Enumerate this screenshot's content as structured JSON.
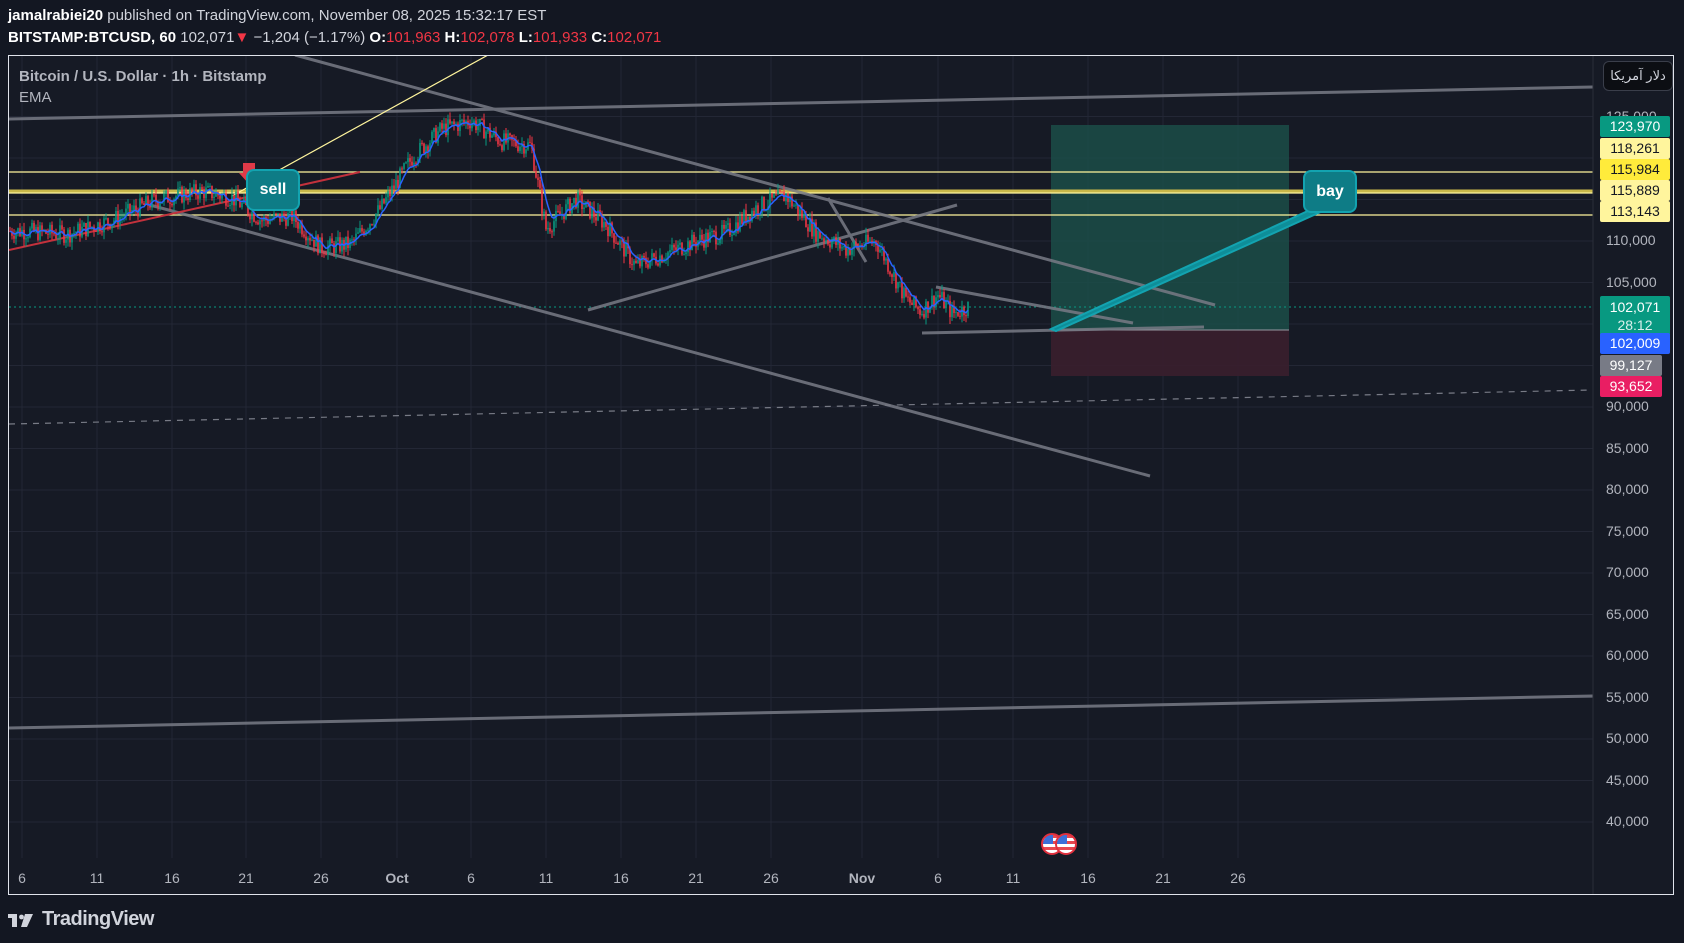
{
  "header": {
    "author": "jamalrabiei20",
    "published_text": " published on TradingView.com, November 08, 2025 15:32:17 EST",
    "symbol": "BITSTAMP:BTCUSD, 60",
    "last_price": "102,071",
    "change": "−1,204 (−1.17%)",
    "open_label": "O:",
    "open": "101,963",
    "high_label": "H:",
    "high": "102,078",
    "low_label": "L:",
    "low": "101,933",
    "close_label": "C:",
    "close": "102,071",
    "change_arrow": "▼"
  },
  "legend": {
    "title": "Bitcoin / U.S. Dollar · 1h · Bitstamp",
    "indicator": "EMA"
  },
  "currency_button": "دلار آمریکا",
  "notes": {
    "sell": "sell",
    "buy": "bay"
  },
  "footer": {
    "brand": "TradingView"
  },
  "price_axis": {
    "ticks": [
      "125,000",
      "110,000",
      "105,000",
      "90,000",
      "85,000",
      "80,000",
      "75,000",
      "70,000",
      "65,000",
      "60,000",
      "55,000",
      "50,000",
      "45,000",
      "40,000"
    ]
  },
  "price_labels": [
    {
      "value": "123,970",
      "bg": "#089981",
      "color": "#ffffff"
    },
    {
      "value": "118,261",
      "bg": "#fff59d",
      "color": "#131722"
    },
    {
      "value": "115,984",
      "bg": "#ffeb3b",
      "color": "#131722"
    },
    {
      "value": "115,889",
      "bg": "#fff59d",
      "color": "#131722"
    },
    {
      "value": "113,143",
      "bg": "#fff59d",
      "color": "#131722"
    },
    {
      "value": "102,071",
      "sub": "28:12",
      "bg": "#089981",
      "color": "#ffffff"
    },
    {
      "value": "102,009",
      "bg": "#2962ff",
      "color": "#ffffff"
    },
    {
      "value": "99,127",
      "bg": "#787b86",
      "color": "#ffffff"
    },
    {
      "value": "93,652",
      "bg": "#e91e63",
      "color": "#ffffff"
    }
  ],
  "time_axis": {
    "ticks": [
      "6",
      "11",
      "16",
      "21",
      "26",
      "Oct",
      "6",
      "11",
      "16",
      "21",
      "26",
      "Nov",
      "6",
      "11",
      "16",
      "21",
      "26"
    ]
  },
  "colors": {
    "background": "#161a25",
    "up": "#089981",
    "down": "#f23645",
    "ema": "#2962ff",
    "trendline": "#787b86",
    "level_line": "#fff59d",
    "target_zone": "#1b4d48",
    "stop_zone": "#3a1f2e"
  },
  "chart_data": {
    "type": "line",
    "title": "Bitcoin / U.S. Dollar · 1h · Bitstamp",
    "xlabel": "",
    "ylabel": "",
    "ylim": [
      36000,
      128000
    ],
    "grid": true,
    "x": [
      "Sep 6",
      "Sep 9",
      "Sep 12",
      "Sep 15",
      "Sep 18",
      "Sep 20",
      "Sep 22",
      "Sep 24",
      "Sep 26",
      "Sep 28",
      "Sep 30",
      "Oct 2",
      "Oct 4",
      "Oct 6",
      "Oct 8",
      "Oct 10",
      "Oct 11",
      "Oct 13",
      "Oct 15",
      "Oct 17",
      "Oct 19",
      "Oct 21",
      "Oct 23",
      "Oct 25",
      "Oct 27",
      "Oct 29",
      "Oct 31",
      "Nov 2",
      "Nov 4",
      "Nov 5",
      "Nov 6",
      "Nov 7",
      "Nov 8"
    ],
    "series": [
      {
        "name": "BTCUSD close",
        "values": [
          111200,
          110800,
          112500,
          115000,
          116000,
          115200,
          112500,
          113000,
          109200,
          109600,
          114000,
          120000,
          123500,
          124500,
          122000,
          121500,
          111500,
          115000,
          112000,
          107000,
          108500,
          110000,
          111000,
          114000,
          115500,
          111000,
          109000,
          110000,
          103000,
          101500,
          103500,
          101200,
          102071
        ]
      }
    ],
    "annotations": [
      {
        "type": "note",
        "text": "sell",
        "date": "Sep 22",
        "price": 115500
      },
      {
        "type": "note",
        "text": "bay",
        "date": "Nov 28",
        "price": 115700
      },
      {
        "type": "long_position",
        "entry": 99127,
        "target": 123970,
        "stop": 93652
      },
      {
        "type": "hline",
        "price": 118261
      },
      {
        "type": "hline",
        "price": 115984
      },
      {
        "type": "hline",
        "price": 115889
      },
      {
        "type": "hline",
        "price": 113143
      }
    ],
    "last_price": 102071,
    "countdown": "28:12"
  }
}
